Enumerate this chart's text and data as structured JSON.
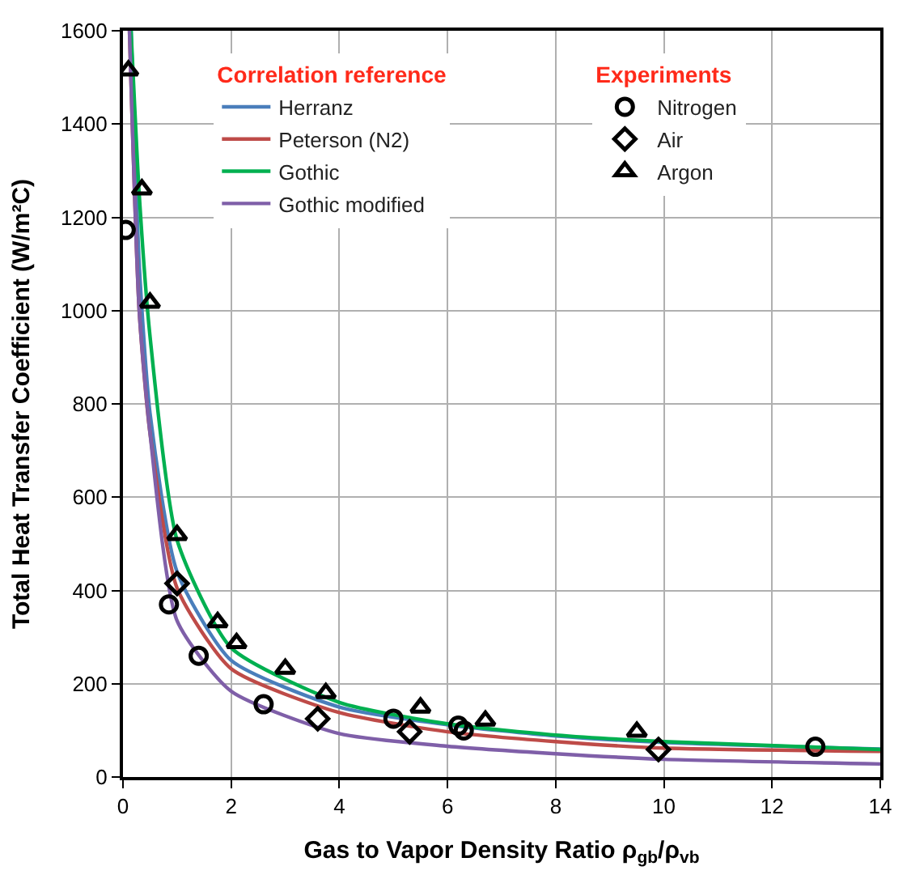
{
  "chart_data": {
    "type": "line",
    "xlabel": "Gas to Vapor Density Ratio ρ$_{gb}$/ρ$_{vb}$",
    "ylabel": "Total Heat Transfer Coefficient (W/m²C)",
    "legend_title": [
      "Correlation reference",
      "Experiments"
    ],
    "xlim": [
      0,
      14
    ],
    "xticks": [
      0,
      2,
      4,
      6,
      8,
      10,
      12,
      14
    ],
    "ylim": [
      0,
      1600
    ],
    "yticks": [
      0,
      200,
      400,
      600,
      800,
      1000,
      1200,
      1400,
      1600
    ],
    "grid": true,
    "legend": "top right",
    "line_style": "solid",
    "series": [
      {
        "name": "Herranz",
        "color": "#4a7ebb",
        "marker": "none",
        "x": [
          0.15,
          0.3,
          0.5,
          1,
          2,
          4,
          6,
          8,
          10,
          14
        ],
        "values": [
          1600,
          1100,
          780,
          440,
          250,
          150,
          112,
          88,
          74,
          60
        ]
      },
      {
        "name": "Peterson (N2)",
        "color": "#be4b48",
        "marker": "none",
        "x": [
          0.12,
          0.3,
          0.5,
          1,
          2,
          4,
          6,
          8,
          10,
          14
        ],
        "values": [
          1600,
          1000,
          737,
          405,
          232,
          138,
          97,
          76,
          62,
          55
        ]
      },
      {
        "name": "Gothic",
        "color": "#00b050",
        "marker": "none",
        "x": [
          0.15,
          0.3,
          0.5,
          1,
          2,
          4,
          6,
          8,
          10,
          14
        ],
        "values": [
          1600,
          1250,
          945,
          508,
          277,
          160,
          114,
          90,
          76,
          59
        ]
      },
      {
        "name": "Gothic modified",
        "color": "#7f5fa8",
        "marker": "none",
        "x": [
          0.12,
          0.3,
          0.5,
          1,
          2,
          4,
          6,
          8,
          10,
          14
        ],
        "values": [
          1600,
          1000,
          737,
          335,
          184,
          93,
          66,
          50,
          38,
          28
        ]
      },
      {
        "name": "Nitrogen",
        "type": "scatter",
        "color": "#000000",
        "marker": "circle",
        "x": [
          0.05,
          0.85,
          1.4,
          2.6,
          5.0,
          6.2,
          6.3,
          12.8
        ],
        "values": [
          1173,
          370,
          260,
          156,
          125,
          110,
          100,
          65
        ]
      },
      {
        "name": "Air",
        "type": "scatter",
        "color": "#000000",
        "marker": "diamond",
        "x": [
          1.0,
          3.6,
          5.3,
          9.9
        ],
        "values": [
          415,
          125,
          97,
          59
        ]
      },
      {
        "name": "Argon",
        "type": "scatter",
        "color": "#000000",
        "marker": "triangle",
        "x": [
          0.1,
          0.35,
          0.5,
          1.0,
          1.75,
          2.1,
          3.0,
          3.75,
          5.5,
          6.7,
          9.5
        ],
        "values": [
          1515,
          1260,
          1017,
          519,
          332,
          287,
          232,
          180,
          149,
          121,
          97
        ]
      }
    ]
  }
}
